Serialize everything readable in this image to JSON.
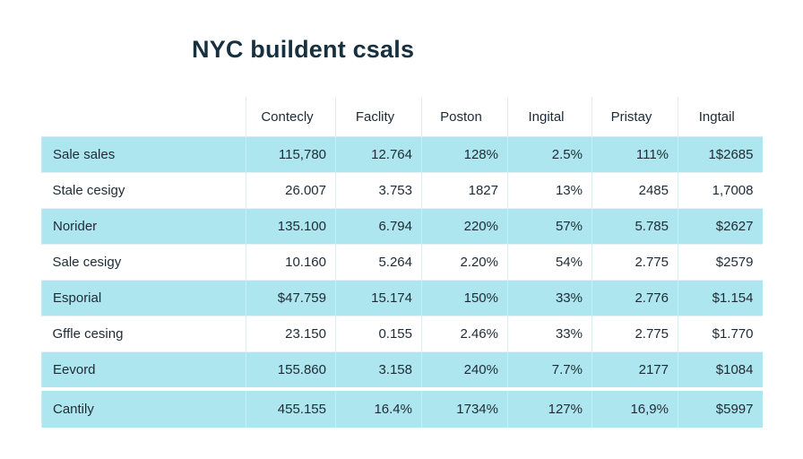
{
  "chart_data": {
    "type": "table",
    "title": "NYC buildent csals",
    "columns": [
      "",
      "Contecly",
      "Faclity",
      "Poston",
      "Ingital",
      "Pristay",
      "Ingtail"
    ],
    "rows": [
      {
        "label": "Sale sales",
        "cells": [
          "115,780",
          "12.764",
          "128%",
          "2.5%",
          "111%",
          "1$2685"
        ],
        "shaded": true
      },
      {
        "label": "Stale cesigy",
        "cells": [
          "26.007",
          "3.753",
          "1827",
          "13%",
          "2485",
          "1,7008"
        ],
        "shaded": false
      },
      {
        "label": "Norider",
        "cells": [
          "135.100",
          "6.794",
          "220%",
          "57%",
          "5.785",
          "$2627"
        ],
        "shaded": true
      },
      {
        "label": "Sale cesigy",
        "cells": [
          "10.160",
          "5.264",
          "2.20%",
          "54%",
          "2.775",
          "$2579"
        ],
        "shaded": false
      },
      {
        "label": "Esporial",
        "cells": [
          "$47.759",
          "15.174",
          "150%",
          "33%",
          "2.776",
          "$1.154"
        ],
        "shaded": true
      },
      {
        "label": "Gffle cesing",
        "cells": [
          "23.150",
          "0.155",
          "2.46%",
          "33%",
          "2.775",
          "$1.770"
        ],
        "shaded": false
      },
      {
        "label": "Eevord",
        "cells": [
          "155.860",
          "3.158",
          "240%",
          "7.7%",
          "2177",
          "$1084"
        ],
        "shaded": true
      },
      {
        "label": "Cantily",
        "cells": [
          "455.155",
          "16.4%",
          "1734%",
          "127%",
          "16,9%",
          "$5997"
        ],
        "shaded": true,
        "total": true
      }
    ],
    "colors": {
      "row_shade": "#aee6f0",
      "title": "#16303f"
    }
  }
}
